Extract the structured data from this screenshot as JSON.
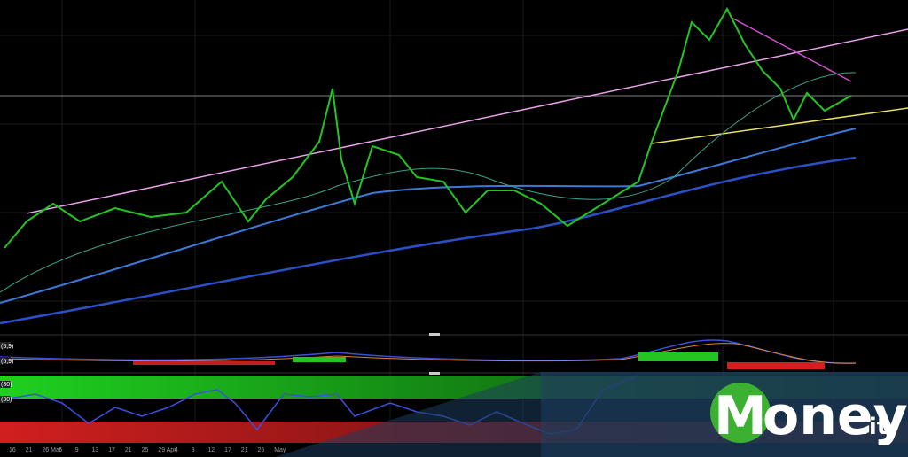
{
  "x_axis": {
    "labels": [
      "16",
      "21",
      "26 Mar",
      "5",
      "9",
      "13",
      "17",
      "21",
      "25",
      "29 Apr",
      "4",
      "8",
      "12",
      "17",
      "21",
      "25",
      "May"
    ]
  },
  "indicators": {
    "macd_label": "(5,9)",
    "rsi_label": "(30)"
  },
  "logo": {
    "brand": "oney",
    "suffix": ".it"
  }
}
